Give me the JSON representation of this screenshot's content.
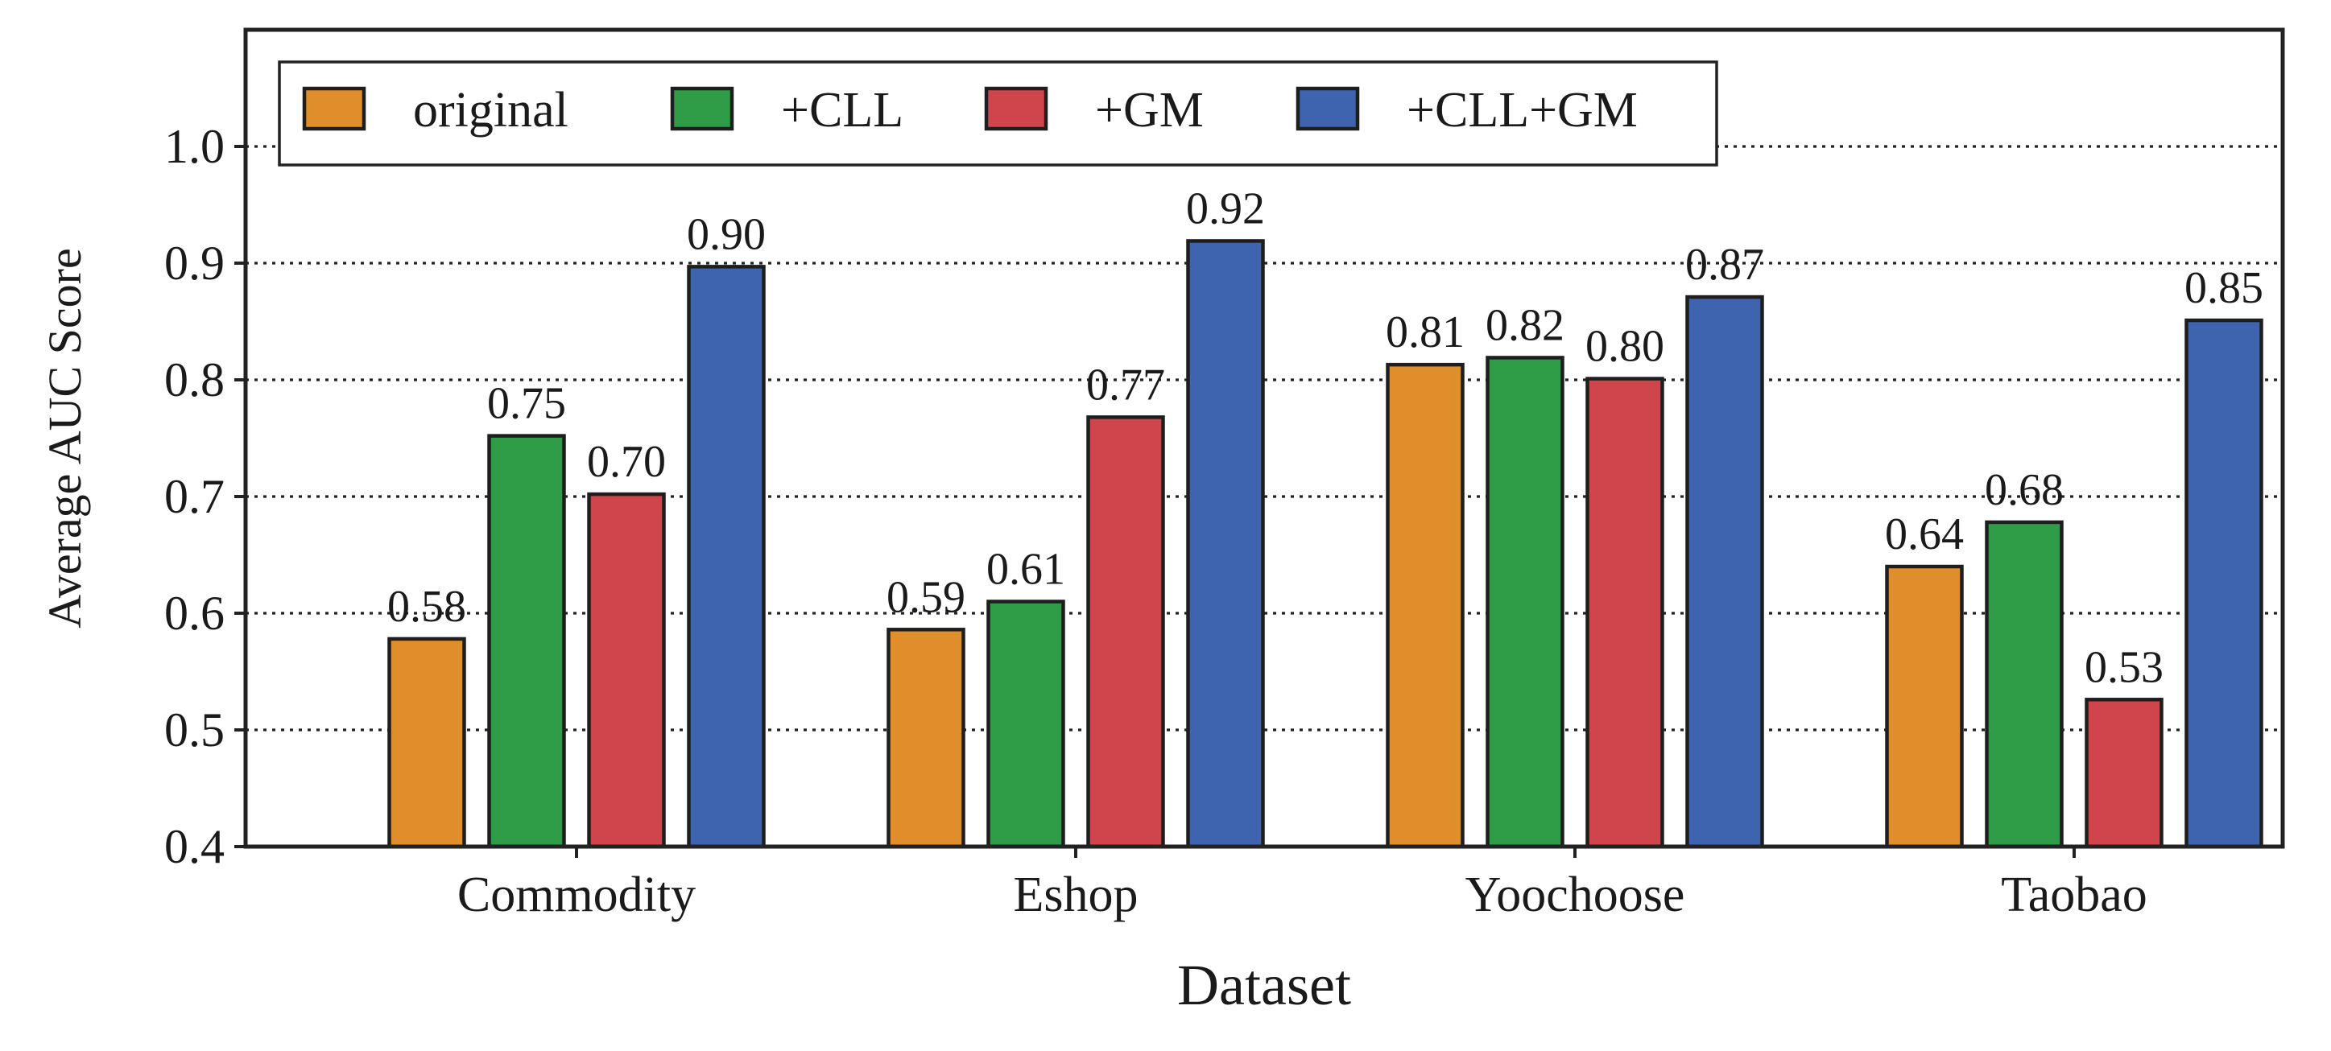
{
  "chart_data": {
    "type": "bar",
    "title": "",
    "xlabel": "Dataset",
    "ylabel": "Average AUC Score",
    "ylim": [
      0.4,
      1.1
    ],
    "yticks": [
      "0.4",
      "0.5",
      "0.6",
      "0.7",
      "0.8",
      "0.9",
      "1.0"
    ],
    "grid": true,
    "grid_axis": "y",
    "legend_position": "top-left",
    "categories": [
      "Commodity",
      "Eshop",
      "Yoochoose",
      "Taobao"
    ],
    "series": [
      {
        "name": "original",
        "color": "#E08E2C",
        "values": [
          0.578,
          0.586,
          0.813,
          0.64
        ],
        "labels": [
          "0.58",
          "0.59",
          "0.81",
          "0.64"
        ]
      },
      {
        "name": "+CLL",
        "color": "#2F9C47",
        "values": [
          0.752,
          0.61,
          0.819,
          0.678
        ],
        "labels": [
          "0.75",
          "0.61",
          "0.82",
          "0.68"
        ]
      },
      {
        "name": "+GM",
        "color": "#D0454B",
        "values": [
          0.702,
          0.768,
          0.801,
          0.526
        ],
        "labels": [
          "0.70",
          "0.77",
          "0.80",
          "0.53"
        ]
      },
      {
        "name": "+CLL+GM",
        "color": "#3E64B0",
        "values": [
          0.897,
          0.919,
          0.871,
          0.851
        ],
        "labels": [
          "0.90",
          "0.92",
          "0.87",
          "0.85"
        ]
      }
    ]
  }
}
